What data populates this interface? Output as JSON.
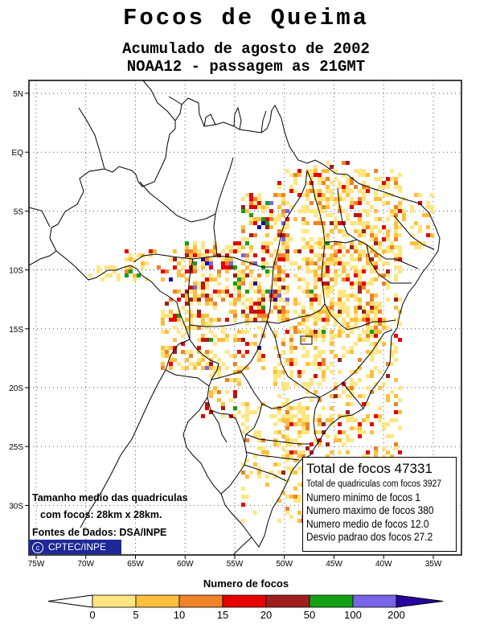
{
  "title": "Focos de Queima",
  "subtitle1": "Acumulado de agosto de 2002",
  "subtitle2": "NOAA12 - passagem as 21GMT",
  "axes": {
    "lon_ticks": [
      "75W",
      "70W",
      "65W",
      "60W",
      "55W",
      "50W",
      "45W",
      "40W",
      "35W"
    ],
    "lat_ticks": [
      "5N",
      "EQ",
      "5S",
      "10S",
      "15S",
      "20S",
      "25S",
      "30S"
    ],
    "lon_values": [
      -75,
      -70,
      -65,
      -60,
      -55,
      -50,
      -45,
      -40,
      -35
    ],
    "lat_values": [
      5,
      0,
      -5,
      -10,
      -15,
      -20,
      -25,
      -30
    ]
  },
  "stats": {
    "total": "Total de focos 47331",
    "cells": "Total de quadriculas com focos 3927",
    "min": "Numero minimo de focos 1",
    "max": "Numero maximo de focos 380",
    "mean": "Numero medio de focos 12.0",
    "std": "Desvio padrao dos focos 27.2"
  },
  "notes": {
    "line1": "Tamanho medio das quadriculas",
    "line2": "com focos: 28km x 28km.",
    "line3": "Fontes de Dados: DSA/INPE"
  },
  "logo": "CPTEC/INPE",
  "legend": {
    "title": "Numero de focos",
    "labels": [
      "0",
      "5",
      "10",
      "15",
      "20",
      "50",
      "100",
      "200"
    ],
    "colors": [
      "#ffe680",
      "#ffbe3c",
      "#f08228",
      "#e60000",
      "#a01e1e",
      "#14a014",
      "#7864e6",
      "#2800a0"
    ]
  }
}
